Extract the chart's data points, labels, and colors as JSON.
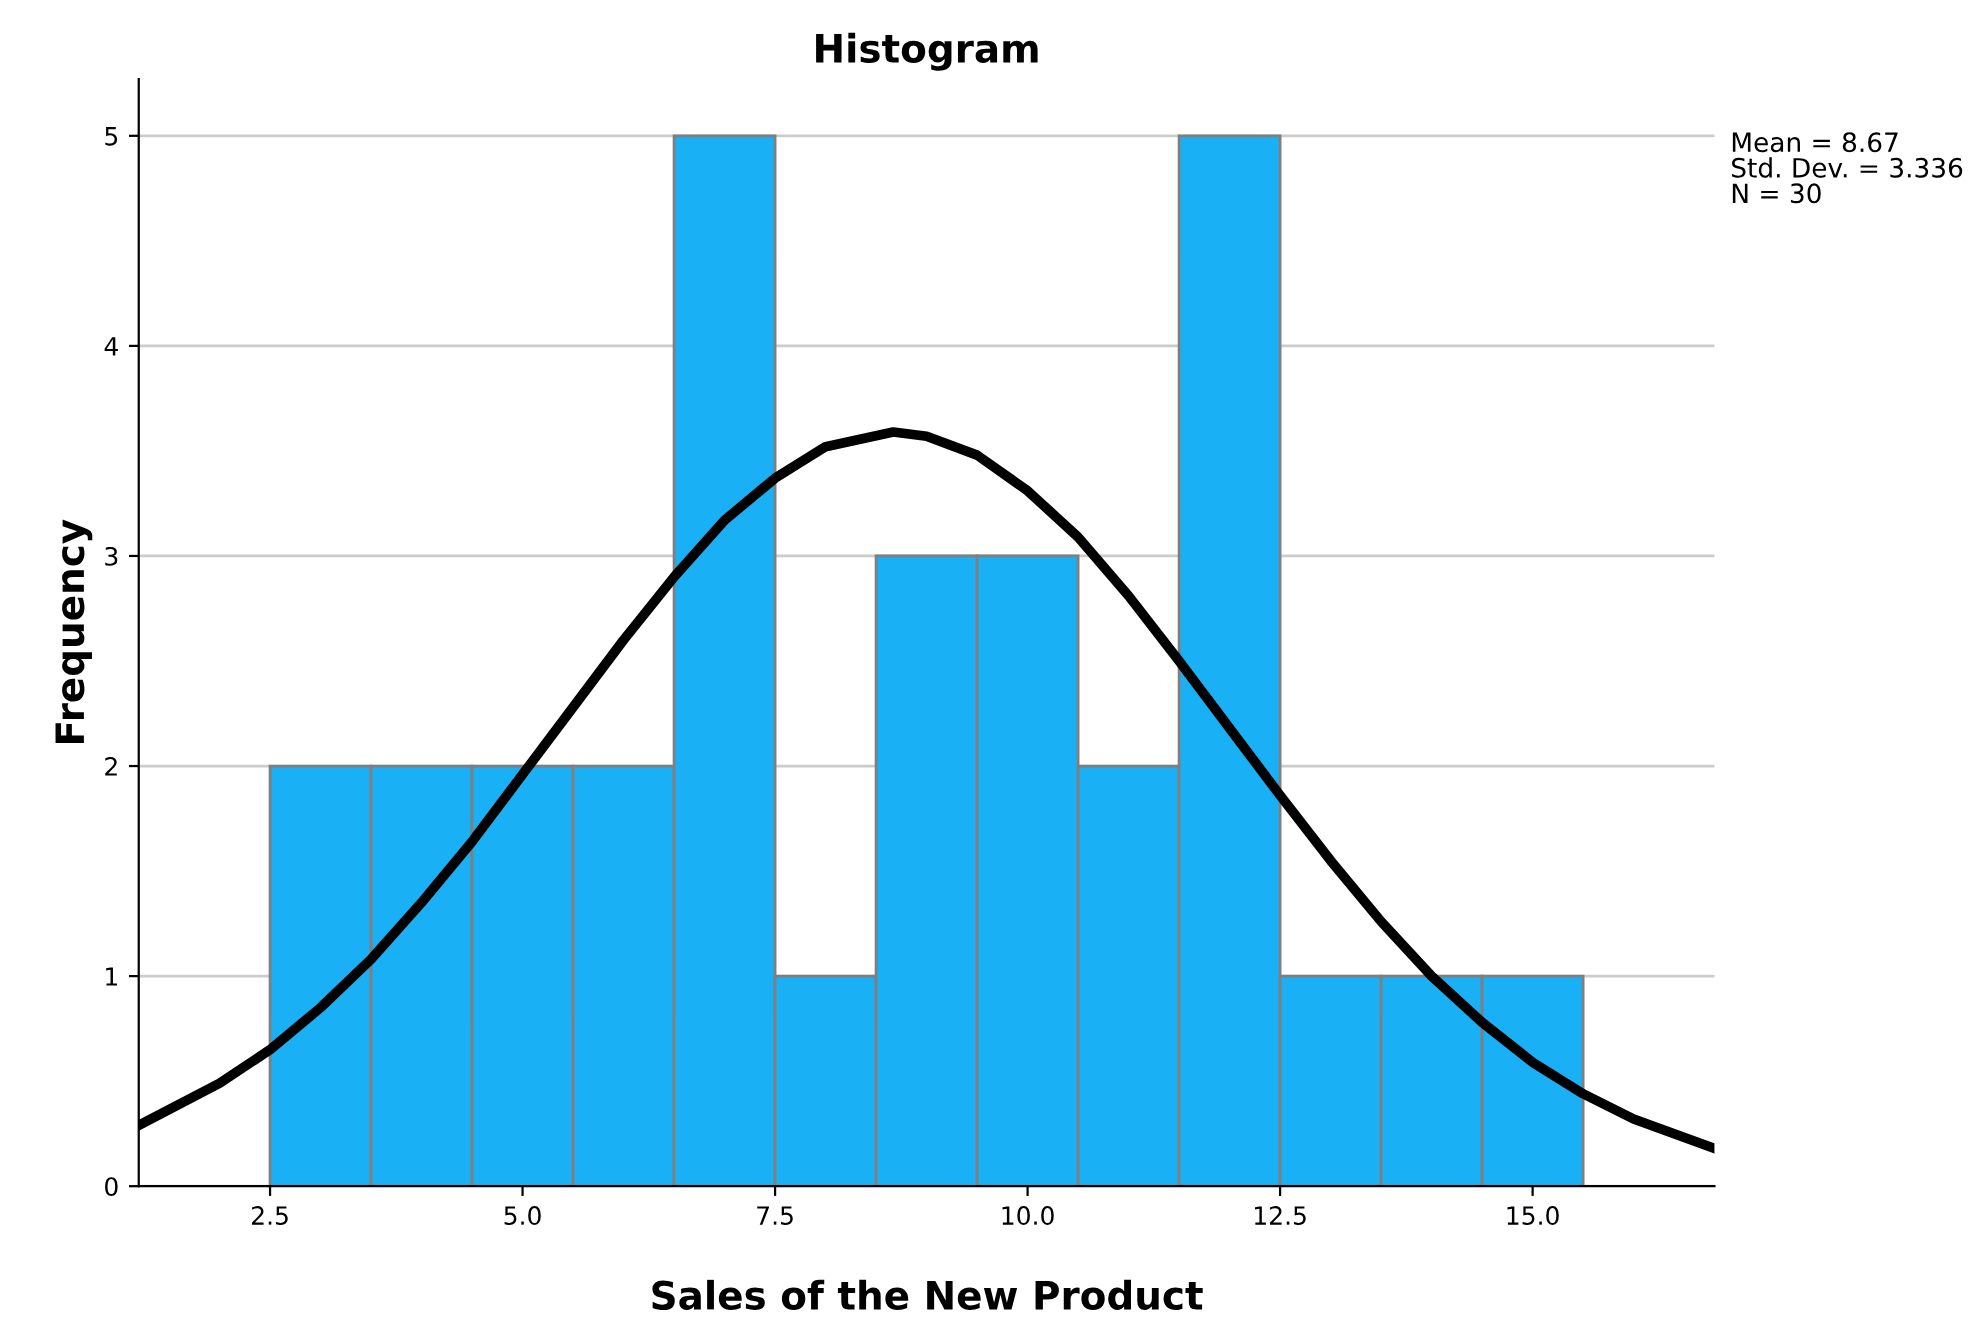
{
  "chart_data": {
    "type": "histogram",
    "title": "Histogram",
    "xlabel": "Sales of the New Product",
    "ylabel": "Frequency",
    "bins": [
      2.5,
      3.5,
      4.5,
      5.5,
      6.5,
      7.5,
      8.5,
      9.5,
      10.5,
      11.5,
      12.5,
      13.5,
      14.5,
      15.5
    ],
    "values": [
      2,
      2,
      2,
      2,
      5,
      1,
      3,
      3,
      2,
      5,
      1,
      1,
      1
    ],
    "color": "#1ab0f5",
    "series": [
      {
        "type": "line",
        "color": "#000000",
        "x": [
          1.2,
          2,
          2.5,
          3,
          3.5,
          4,
          4.5,
          5,
          5.5,
          6,
          6.5,
          7,
          7.5,
          8,
          8.67,
          9,
          9.5,
          10,
          10.5,
          11,
          11.5,
          12,
          12.5,
          13,
          13.5,
          14,
          14.5,
          15,
          15.5,
          16,
          16.8
        ],
        "values": [
          0.29,
          0.49,
          0.65,
          0.85,
          1.08,
          1.35,
          1.64,
          1.96,
          2.28,
          2.6,
          2.9,
          3.17,
          3.37,
          3.52,
          3.59,
          3.57,
          3.48,
          3.31,
          3.09,
          2.81,
          2.5,
          2.18,
          1.86,
          1.55,
          1.26,
          1.0,
          0.78,
          0.59,
          0.44,
          0.32,
          0.18
        ]
      }
    ],
    "xlim": [
      1.2,
      16.8
    ],
    "ylim": [
      0,
      5.27
    ],
    "xticks": [
      {
        "value": 2.5,
        "label": "2.5"
      },
      {
        "value": 5,
        "label": "5.0"
      },
      {
        "value": 7.5,
        "label": "7.5"
      },
      {
        "value": 10,
        "label": "10.0"
      },
      {
        "value": 12.5,
        "label": "12.5"
      },
      {
        "value": 15,
        "label": "15.0"
      }
    ],
    "yticks": [
      0,
      1,
      2,
      3,
      4,
      5
    ],
    "grid": "y",
    "legend": false,
    "annotations": [
      "Mean = 8.67\nStd. Dev. = 3.336\nN = 30"
    ]
  }
}
